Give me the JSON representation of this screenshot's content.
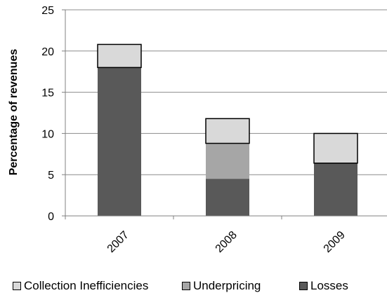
{
  "chart_data": {
    "type": "bar",
    "stacked": true,
    "categories": [
      "2007",
      "2008",
      "2009"
    ],
    "series": [
      {
        "name": "Losses",
        "values": [
          18,
          4.5,
          6.4
        ],
        "color": "#595959"
      },
      {
        "name": "Underpricing",
        "values": [
          0,
          4.3,
          0
        ],
        "color": "#a6a6a6"
      },
      {
        "name": "Collection Inefficiencies",
        "values": [
          2.8,
          3.0,
          3.6
        ],
        "color": "#d9d9d9"
      }
    ],
    "title": "",
    "xlabel": "",
    "ylabel": "Percentage of revenues",
    "ylim": [
      0,
      25
    ],
    "yticks": [
      "0",
      "5",
      "10",
      "15",
      "20",
      "25"
    ],
    "grid": true,
    "legend": "bottom",
    "legend_order": [
      "Collection Inefficiencies",
      "Underpricing",
      "Losses"
    ]
  }
}
